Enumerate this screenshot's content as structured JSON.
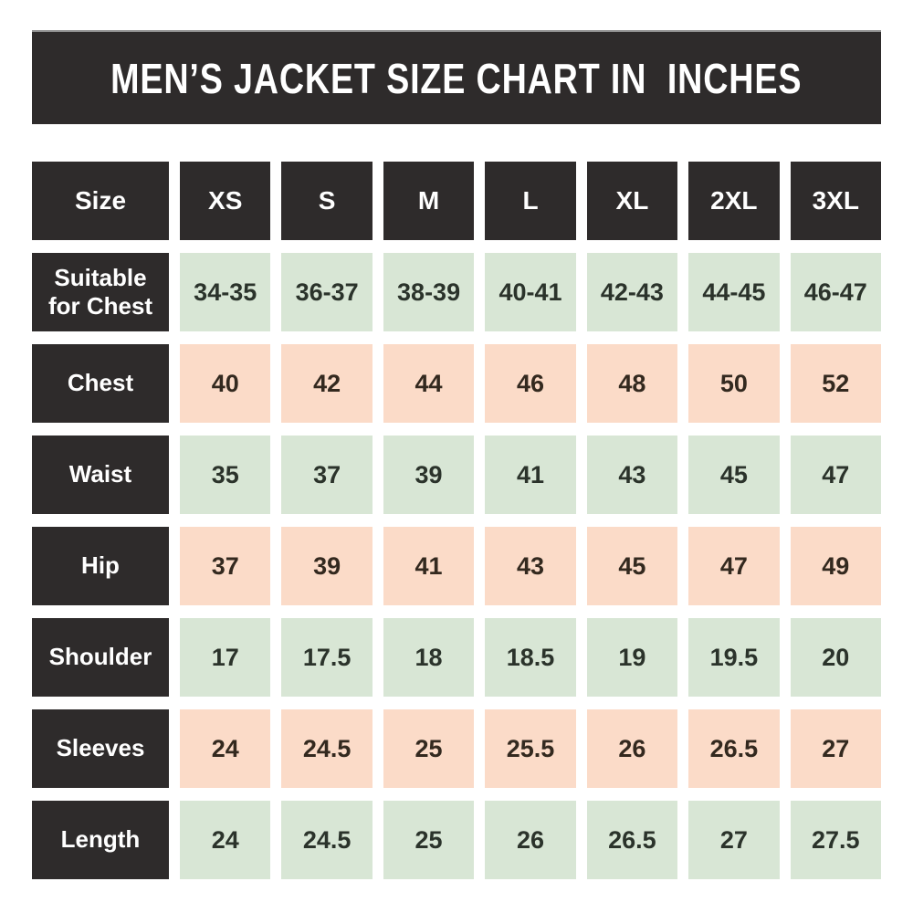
{
  "colors": {
    "dark": "#2e2b2b",
    "green": "#d8e6d5",
    "pink": "#fbdbc8",
    "green_text": "#2b332b",
    "pink_text": "#33291f",
    "title_text": "#ffffff",
    "page_bg": "#ffffff"
  },
  "chart_data": {
    "type": "table",
    "title": "MEN’S JACKET SIZE CHART IN  INCHES",
    "columns": [
      "Size",
      "XS",
      "S",
      "M",
      "L",
      "XL",
      "2XL",
      "3XL"
    ],
    "rows": [
      {
        "label": "Suitable for Chest",
        "tint": "green",
        "values": [
          "34-35",
          "36-37",
          "38-39",
          "40-41",
          "42-43",
          "44-45",
          "46-47"
        ]
      },
      {
        "label": "Chest",
        "tint": "pink",
        "values": [
          "40",
          "42",
          "44",
          "46",
          "48",
          "50",
          "52"
        ]
      },
      {
        "label": "Waist",
        "tint": "green",
        "values": [
          "35",
          "37",
          "39",
          "41",
          "43",
          "45",
          "47"
        ]
      },
      {
        "label": "Hip",
        "tint": "pink",
        "values": [
          "37",
          "39",
          "41",
          "43",
          "45",
          "47",
          "49"
        ]
      },
      {
        "label": "Shoulder",
        "tint": "green",
        "values": [
          "17",
          "17.5",
          "18",
          "18.5",
          "19",
          "19.5",
          "20"
        ]
      },
      {
        "label": "Sleeves",
        "tint": "pink",
        "values": [
          "24",
          "24.5",
          "25",
          "25.5",
          "26",
          "26.5",
          "27"
        ]
      },
      {
        "label": "Length",
        "tint": "green",
        "values": [
          "24",
          "24.5",
          "25",
          "26",
          "26.5",
          "27",
          "27.5"
        ]
      }
    ]
  }
}
